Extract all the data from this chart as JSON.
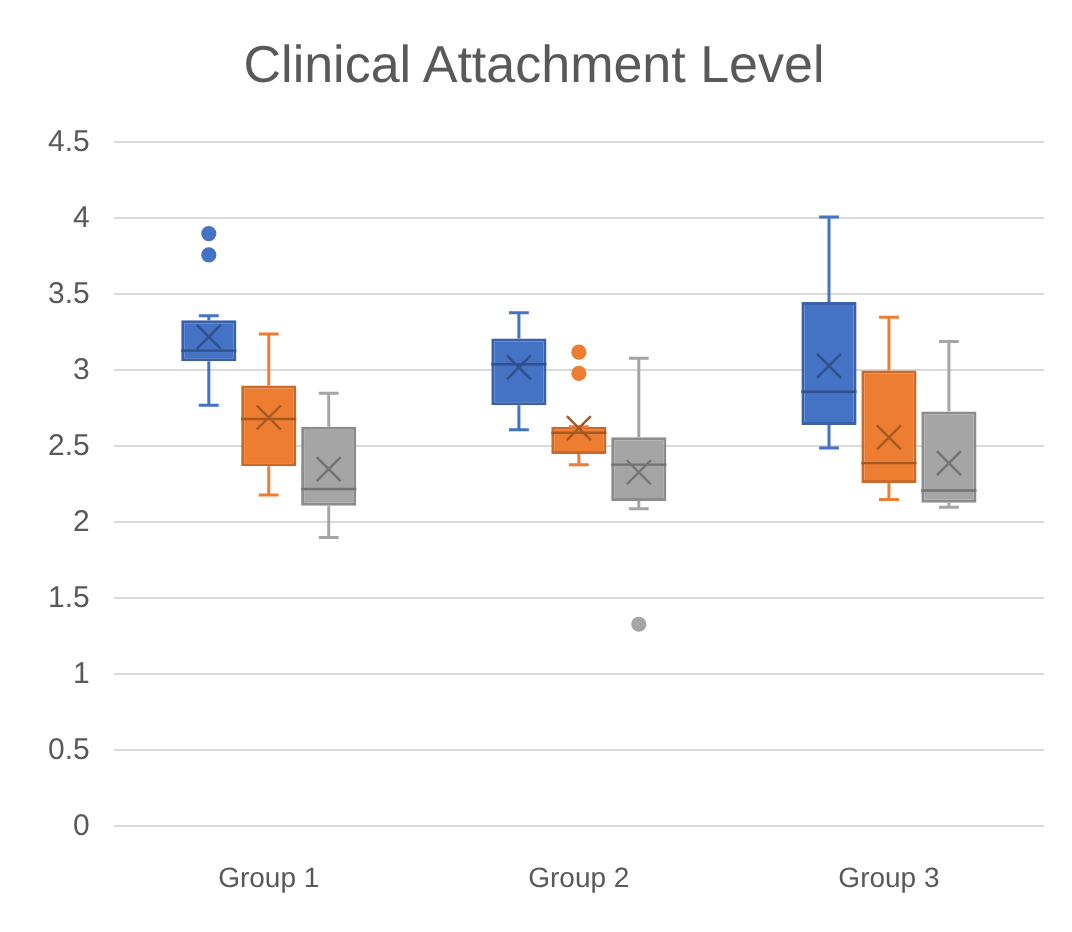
{
  "chart_data": {
    "type": "box",
    "title": "Clinical Attachment Level",
    "categories": [
      "Group 1",
      "Group 2",
      "Group 3"
    ],
    "ylim": [
      0,
      4.5
    ],
    "yticks": [
      0,
      0.5,
      1,
      1.5,
      2,
      2.5,
      3,
      3.5,
      4,
      4.5
    ],
    "grid": "y",
    "legend": false,
    "series": [
      {
        "color": "#4472c4",
        "boxes": [
          {
            "low": 2.77,
            "q1": 3.06,
            "median": 3.13,
            "q3": 3.33,
            "high": 3.36,
            "mean": 3.22,
            "outliers": [
              3.76,
              3.9
            ]
          },
          {
            "low": 2.61,
            "q1": 2.77,
            "median": 3.04,
            "q3": 3.21,
            "high": 3.38,
            "mean": 3.02
          },
          {
            "low": 2.49,
            "q1": 2.64,
            "median": 2.86,
            "q3": 3.45,
            "high": 4.01,
            "mean": 3.03
          }
        ]
      },
      {
        "color": "#ed7d31",
        "boxes": [
          {
            "low": 2.18,
            "q1": 2.37,
            "median": 2.68,
            "q3": 2.9,
            "high": 3.24,
            "mean": 2.69
          },
          {
            "low": 2.38,
            "q1": 2.45,
            "median": 2.59,
            "q3": 2.63,
            "high": 2.63,
            "mean": 2.62,
            "outliers": [
              2.98,
              3.12
            ]
          },
          {
            "low": 2.15,
            "q1": 2.26,
            "median": 2.39,
            "q3": 3.0,
            "high": 3.35,
            "mean": 2.56
          }
        ]
      },
      {
        "color": "#a5a5a5",
        "boxes": [
          {
            "low": 1.9,
            "q1": 2.11,
            "median": 2.22,
            "q3": 2.63,
            "high": 2.85,
            "mean": 2.35
          },
          {
            "low": 2.09,
            "q1": 2.14,
            "median": 2.38,
            "q3": 2.56,
            "high": 3.08,
            "mean": 2.33,
            "outliers": [
              1.33
            ]
          },
          {
            "low": 2.1,
            "q1": 2.13,
            "median": 2.21,
            "q3": 2.73,
            "high": 3.19,
            "mean": 2.39
          }
        ]
      }
    ]
  }
}
